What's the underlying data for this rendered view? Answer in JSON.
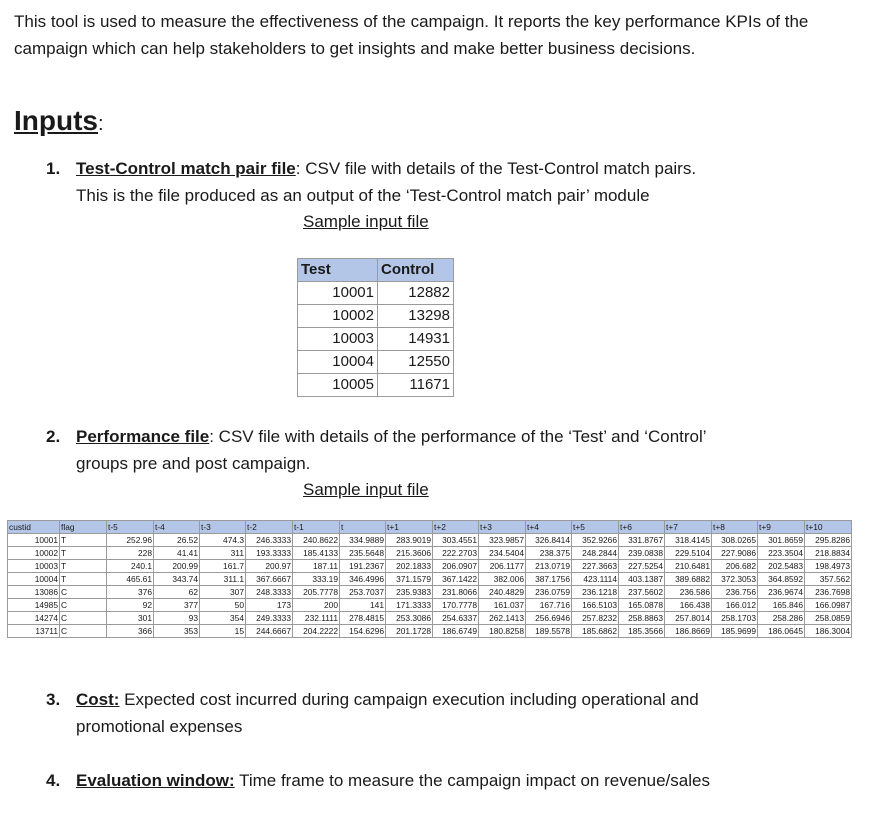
{
  "intro": "This tool is used to measure the effectiveness of the campaign. It reports the key performance KPIs of the campaign which can help stakeholders to get insights and make better business decisions.",
  "heading": {
    "text": "Inputs",
    "suffix": ":"
  },
  "items": [
    {
      "num": "1.",
      "keyword": "Test-Control match pair file",
      "rest": ": CSV file with details of the Test-Control match pairs.",
      "line2": "This is the file produced as an output of the ‘Test-Control match pair’ module"
    },
    {
      "num": "2.",
      "keyword": "Performance file",
      "rest": ": CSV file with details of the performance of the ‘Test’ and ‘Control’",
      "line2": "groups pre and post campaign."
    },
    {
      "num": "3.",
      "keyword": "Cost:",
      "rest": " Expected cost incurred during campaign execution including operational and",
      "line2": "promotional expenses"
    },
    {
      "num": "4.",
      "keyword": "Evaluation window:",
      "rest": " Time frame to measure the campaign impact on revenue/sales",
      "line2": ""
    }
  ],
  "sample_caption_1": "Sample input file",
  "sample_caption_2": "Sample input file",
  "match_table": {
    "headers": [
      "Test",
      "Control"
    ],
    "rows": [
      [
        "10001",
        "12882"
      ],
      [
        "10002",
        "13298"
      ],
      [
        "10003",
        "14931"
      ],
      [
        "10004",
        "12550"
      ],
      [
        "10005",
        "11671"
      ]
    ]
  },
  "perf_table": {
    "headers": [
      "custid",
      "flag",
      "t-5",
      "t-4",
      "t-3",
      "t-2",
      "t-1",
      "t",
      "t+1",
      "t+2",
      "t+3",
      "t+4",
      "t+5",
      "t+6",
      "t+7",
      "t+8",
      "t+9",
      "t+10"
    ],
    "rows": [
      [
        "10001",
        "T",
        "252.96",
        "26.52",
        "474.3",
        "246.3333",
        "240.8622",
        "334.9889",
        "283.9019",
        "303.4551",
        "323.9857",
        "326.8414",
        "352.9266",
        "331.8767",
        "318.4145",
        "308.0265",
        "301.8659",
        "295.8286"
      ],
      [
        "10002",
        "T",
        "228",
        "41.41",
        "311",
        "193.3333",
        "185.4133",
        "235.5648",
        "215.3606",
        "222.2703",
        "234.5404",
        "238.375",
        "248.2844",
        "239.0838",
        "229.5104",
        "227.9086",
        "223.3504",
        "218.8834"
      ],
      [
        "10003",
        "T",
        "240.1",
        "200.99",
        "161.7",
        "200.97",
        "187.11",
        "191.2367",
        "202.1833",
        "206.0907",
        "206.1177",
        "213.0719",
        "227.3663",
        "227.5254",
        "210.6481",
        "206.682",
        "202.5483",
        "198.4973"
      ],
      [
        "10004",
        "T",
        "465.61",
        "343.74",
        "311.1",
        "367.6667",
        "333.19",
        "346.4996",
        "371.1579",
        "367.1422",
        "382.006",
        "387.1756",
        "423.1114",
        "403.1387",
        "389.6882",
        "372.3053",
        "364.8592",
        "357.562"
      ],
      [
        "13086",
        "C",
        "376",
        "62",
        "307",
        "248.3333",
        "205.7778",
        "253.7037",
        "235.9383",
        "231.8066",
        "240.4829",
        "236.0759",
        "236.1218",
        "237.5602",
        "236.586",
        "236.756",
        "236.9674",
        "236.7698"
      ],
      [
        "14985",
        "C",
        "92",
        "377",
        "50",
        "173",
        "200",
        "141",
        "171.3333",
        "170.7778",
        "161.037",
        "167.716",
        "166.5103",
        "165.0878",
        "166.438",
        "166.012",
        "165.846",
        "166.0987"
      ],
      [
        "14274",
        "C",
        "301",
        "93",
        "354",
        "249.3333",
        "232.1111",
        "278.4815",
        "253.3086",
        "254.6337",
        "262.1413",
        "256.6946",
        "257.8232",
        "258.8863",
        "257.8014",
        "258.1703",
        "258.286",
        "258.0859"
      ],
      [
        "13711",
        "C",
        "366",
        "353",
        "15",
        "244.6667",
        "204.2222",
        "154.6296",
        "201.1728",
        "186.6749",
        "180.8258",
        "189.5578",
        "185.6862",
        "185.3566",
        "186.8669",
        "185.9699",
        "186.0645",
        "186.3004"
      ]
    ]
  }
}
